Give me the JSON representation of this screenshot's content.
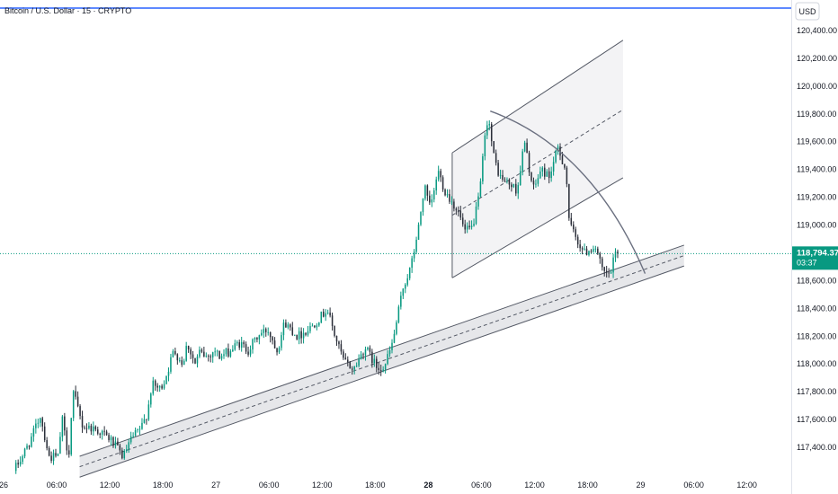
{
  "header": {
    "symbol_title": "Bitcoin / U.S. Dollar · 15 · CRYPTO"
  },
  "price_axis": {
    "currency": "USD"
  },
  "last_price": {
    "value": "118,794.37",
    "countdown": "03:37",
    "raw": 118794.37
  },
  "colors": {
    "up": "#089981",
    "down": "#2a2e39",
    "line": "#2962ff",
    "channel_fill": "#f2f2f4",
    "trend_band": "#e6e7ea",
    "drawing": "#555a66",
    "price_label_bg": "#089981"
  },
  "chart_data": {
    "type": "candlestick",
    "symbol": "Bitcoin / U.S. Dollar",
    "interval": "15",
    "exchange": "CRYPTO",
    "ylim": [
      117180,
      120620
    ],
    "y_ticks": [
      117400,
      117600,
      117800,
      118000,
      118200,
      118400,
      118600,
      118800,
      119000,
      119200,
      119400,
      119600,
      119800,
      120000,
      120200,
      120400
    ],
    "y_tick_labels": [
      "117,400.00",
      "117,600.00",
      "117,800.00",
      "118,000.00",
      "118,200.00",
      "118,400.00",
      "118,600.00",
      "118,800.00",
      "119,000.00",
      "119,200.00",
      "119,400.00",
      "119,600.00",
      "119,800.00",
      "120,000.00",
      "120,200.00",
      "120,400.00"
    ],
    "x_ticks": [
      {
        "label": "26",
        "h": -6,
        "bold": false
      },
      {
        "label": "06:00",
        "h": 0,
        "bold": false
      },
      {
        "label": "12:00",
        "h": 6,
        "bold": false
      },
      {
        "label": "18:00",
        "h": 12,
        "bold": false
      },
      {
        "label": "27",
        "h": 18,
        "bold": false
      },
      {
        "label": "06:00",
        "h": 24,
        "bold": false
      },
      {
        "label": "12:00",
        "h": 30,
        "bold": false
      },
      {
        "label": "18:00",
        "h": 36,
        "bold": false
      },
      {
        "label": "28",
        "h": 42,
        "bold": true
      },
      {
        "label": "06:00",
        "h": 48,
        "bold": false
      },
      {
        "label": "12:00",
        "h": 54,
        "bold": false
      },
      {
        "label": "18:00",
        "h": 60,
        "bold": false
      },
      {
        "label": "29",
        "h": 66,
        "bold": false
      },
      {
        "label": "06:00",
        "h": 72,
        "bold": false
      },
      {
        "label": "12:00",
        "h": 78,
        "bold": false
      }
    ],
    "xlim_hours": [
      -6.4,
      82.2
    ],
    "candle_interval_hours": 0.25,
    "waypoints": [
      [
        -4.6,
        117230
      ],
      [
        -3.5,
        117350
      ],
      [
        -2.5,
        117480
      ],
      [
        -1.6,
        117630
      ],
      [
        -0.6,
        117330
      ],
      [
        0.5,
        117330
      ],
      [
        0.8,
        117630
      ],
      [
        1.6,
        117330
      ],
      [
        2.1,
        117800
      ],
      [
        3.2,
        117550
      ],
      [
        4.3,
        117540
      ],
      [
        5.5,
        117500
      ],
      [
        6.4,
        117450
      ],
      [
        7.8,
        117330
      ],
      [
        8.6,
        117450
      ],
      [
        9.9,
        117550
      ],
      [
        10.5,
        117650
      ],
      [
        11.0,
        117850
      ],
      [
        11.9,
        117820
      ],
      [
        12.3,
        117860
      ],
      [
        12.8,
        117950
      ],
      [
        13.5,
        118100
      ],
      [
        14.5,
        118000
      ],
      [
        15.0,
        118150
      ],
      [
        15.9,
        118000
      ],
      [
        16.4,
        118080
      ],
      [
        17.3,
        118050
      ],
      [
        18.1,
        118100
      ],
      [
        18.7,
        118050
      ],
      [
        20.0,
        118100
      ],
      [
        20.8,
        118150
      ],
      [
        21.9,
        118100
      ],
      [
        23.0,
        118200
      ],
      [
        24.1,
        118250
      ],
      [
        25.2,
        118100
      ],
      [
        26.0,
        118300
      ],
      [
        27.5,
        118200
      ],
      [
        28.7,
        118250
      ],
      [
        30.1,
        118340
      ],
      [
        30.8,
        118400
      ],
      [
        31.7,
        118200
      ],
      [
        32.7,
        118020
      ],
      [
        33.8,
        117960
      ],
      [
        35.1,
        118120
      ],
      [
        36.4,
        117980
      ],
      [
        37.3,
        117980
      ],
      [
        38.2,
        118150
      ],
      [
        38.9,
        118380
      ],
      [
        39.4,
        118550
      ],
      [
        40.3,
        118700
      ],
      [
        41.2,
        119000
      ],
      [
        41.8,
        119280
      ],
      [
        42.4,
        119130
      ],
      [
        42.9,
        119230
      ],
      [
        43.3,
        119400
      ],
      [
        44.1,
        119250
      ],
      [
        45.6,
        119100
      ],
      [
        46.4,
        118950
      ],
      [
        47.2,
        118980
      ],
      [
        48.0,
        119200
      ],
      [
        48.6,
        119600
      ],
      [
        49.0,
        119800
      ],
      [
        49.6,
        119500
      ],
      [
        50.3,
        119350
      ],
      [
        51.3,
        119300
      ],
      [
        52.3,
        119250
      ],
      [
        53.1,
        119600
      ],
      [
        54.1,
        119250
      ],
      [
        55.0,
        119400
      ],
      [
        55.9,
        119350
      ],
      [
        56.9,
        119550
      ],
      [
        57.8,
        119400
      ],
      [
        58.2,
        119000
      ],
      [
        59.0,
        118900
      ],
      [
        59.9,
        118800
      ],
      [
        61.1,
        118850
      ],
      [
        62.0,
        118650
      ],
      [
        62.8,
        118640
      ],
      [
        63.4,
        118800
      ]
    ],
    "trendline": {
      "h1": 2.6,
      "y1": 117260,
      "h2": 70.9,
      "y2": 118780,
      "band_width": 75
    },
    "channel": {
      "lower": {
        "h1": 44.7,
        "y1": 118620,
        "h2": 64.0,
        "y2": 119340
      },
      "upper": {
        "h1": 44.7,
        "y1": 119520,
        "h2": 64.0,
        "y2": 120330
      },
      "midline": {
        "h1": 44.7,
        "y1": 119070,
        "h2": 64.0,
        "y2": 119830
      }
    },
    "arc": [
      [
        49.0,
        119820
      ],
      [
        56.5,
        119650
      ],
      [
        62.5,
        119250
      ],
      [
        66.5,
        118650
      ]
    ]
  }
}
